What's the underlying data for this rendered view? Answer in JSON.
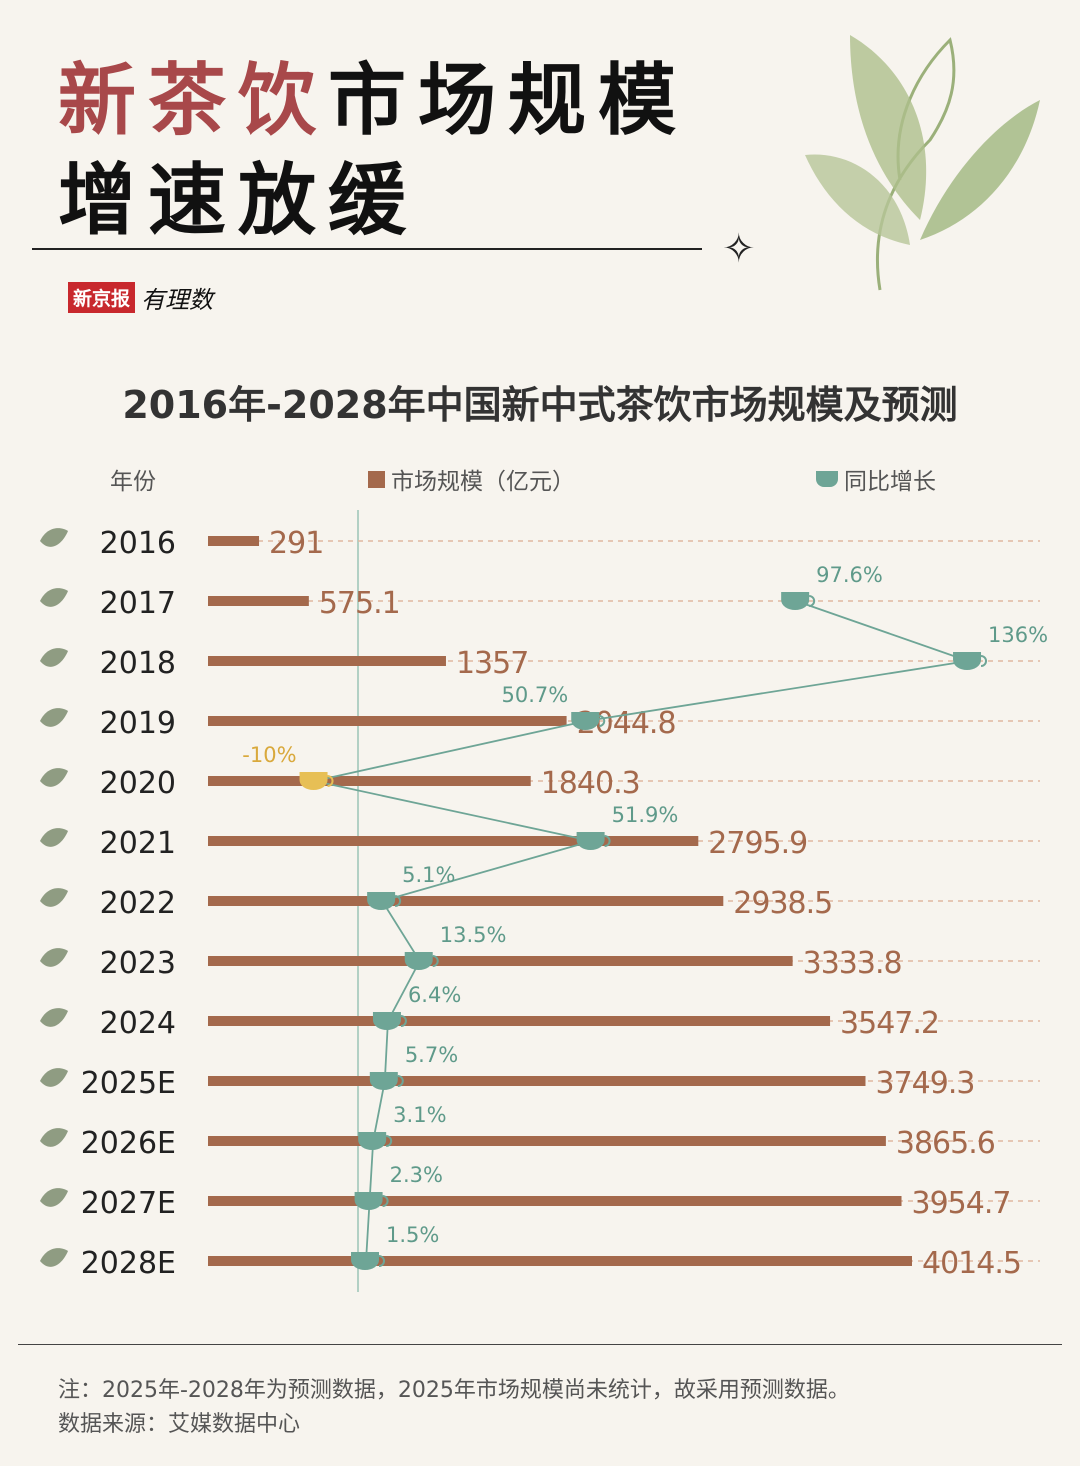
{
  "headline": {
    "line1_red": "新茶饮",
    "line1_black": "市场规模",
    "line2": "增速放缓"
  },
  "brand": {
    "box": "新京报",
    "sub": "有理数"
  },
  "legend": {
    "year": "年份",
    "bar": "市场规模（亿元）",
    "line": "同比增长"
  },
  "colors": {
    "bar": "#a4694c",
    "line": "#6ea596",
    "negative": "#e7bf55",
    "grid": "#e0b8a0",
    "background": "#f7f4ee"
  },
  "chart_data": {
    "type": "bar",
    "title": "2016年-2028年中国新中式茶饮市场规模及预测",
    "categories": [
      "2016",
      "2017",
      "2018",
      "2019",
      "2020",
      "2021",
      "2022",
      "2023",
      "2024",
      "2025E",
      "2026E",
      "2027E",
      "2028E"
    ],
    "series": [
      {
        "name": "市场规模（亿元）",
        "type": "bar",
        "values": [
          291,
          575.1,
          1357,
          2044.8,
          1840.3,
          2795.9,
          2938.5,
          3333.8,
          3547.2,
          3749.3,
          3865.6,
          3954.7,
          4014.5
        ],
        "labels": [
          "291",
          "575.1",
          "1357",
          "2044.8",
          "1840.3",
          "2795.9",
          "2938.5",
          "3333.8",
          "3547.2",
          "3749.3",
          "3865.6",
          "3954.7",
          "4014.5"
        ]
      },
      {
        "name": "同比增长",
        "type": "line",
        "values": [
          null,
          97.6,
          136,
          50.7,
          -10,
          51.9,
          5.1,
          13.5,
          6.4,
          5.7,
          3.1,
          2.3,
          1.5
        ],
        "labels": [
          "",
          "97.6%",
          "136%",
          "50.7%",
          "-10%",
          "51.9%",
          "5.1%",
          "13.5%",
          "6.4%",
          "5.7%",
          "3.1%",
          "2.3%",
          "1.5%"
        ]
      }
    ]
  },
  "footer": {
    "note": "注：2025年-2028年为预测数据，2025年市场规模尚未统计，故采用预测数据。",
    "source": "数据来源：艾媒数据中心"
  }
}
